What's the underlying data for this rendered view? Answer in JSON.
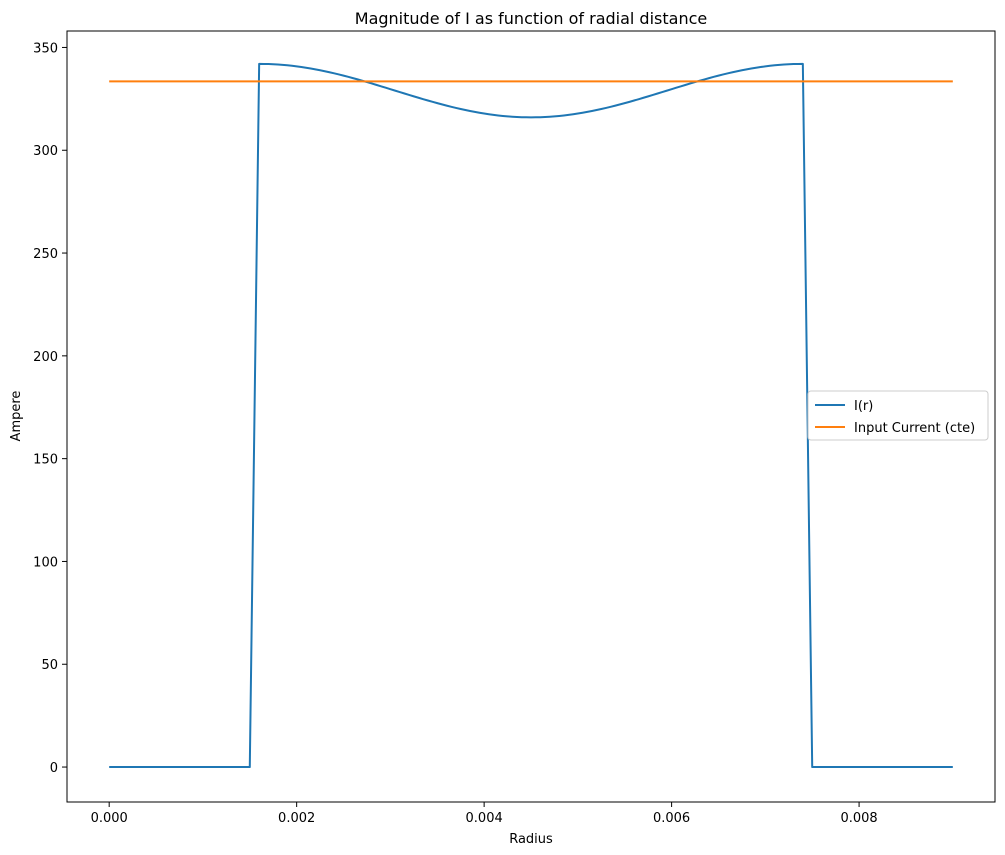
{
  "chart_data": {
    "type": "line",
    "title": "Magnitude of I as function of radial distance",
    "xlabel": "Radius",
    "ylabel": "Ampere",
    "xlim": [
      -0.00045,
      0.00945
    ],
    "ylim": [
      -17,
      358
    ],
    "xticks": [
      0.0,
      0.002,
      0.004,
      0.006,
      0.008
    ],
    "xtick_labels": [
      "0.000",
      "0.002",
      "0.004",
      "0.006",
      "0.008"
    ],
    "yticks": [
      0,
      50,
      100,
      150,
      200,
      250,
      300,
      350
    ],
    "ytick_labels": [
      "0",
      "50",
      "100",
      "150",
      "200",
      "250",
      "300",
      "350"
    ],
    "grid": false,
    "legend_position": "center-right",
    "series": [
      {
        "name": "I(r)",
        "color": "#1f77b4",
        "x": [
          0.0,
          0.0015,
          0.0016,
          0.002,
          0.0025,
          0.003,
          0.0035,
          0.004,
          0.0045,
          0.005,
          0.0055,
          0.006,
          0.0065,
          0.007,
          0.0074,
          0.0075,
          0.009
        ],
        "y": [
          0,
          0,
          342,
          339,
          333,
          325,
          319,
          316.5,
          316,
          317,
          321,
          328,
          334,
          340,
          342,
          0,
          0
        ]
      },
      {
        "name": "Input Current (cte)",
        "color": "#ff7f0e",
        "x": [
          0.0,
          0.009
        ],
        "y": [
          333.5,
          333.5
        ]
      }
    ]
  }
}
